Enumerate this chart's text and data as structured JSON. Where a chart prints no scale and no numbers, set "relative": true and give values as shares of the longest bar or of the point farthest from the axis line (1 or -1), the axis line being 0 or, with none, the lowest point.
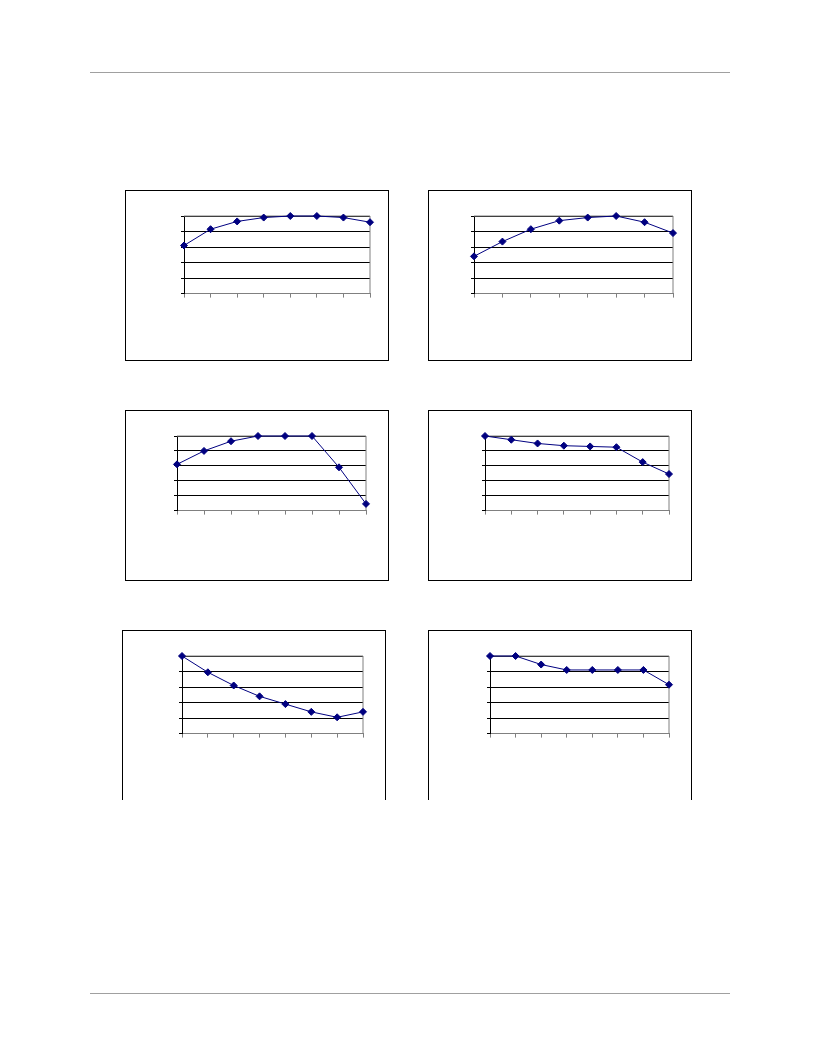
{
  "chart_data": [
    {
      "type": "line",
      "relative": true,
      "categories": [
        null,
        null,
        null,
        null,
        null,
        null,
        null,
        null
      ],
      "grid": "y",
      "marker": "diamond",
      "legend": false,
      "series": [
        {
          "color": "#000080",
          "values": [
            0.62,
            0.83,
            0.93,
            0.98,
            1,
            1,
            0.98,
            0.92
          ]
        }
      ]
    },
    {
      "type": "line",
      "relative": true,
      "categories": [
        null,
        null,
        null,
        null,
        null,
        null,
        null,
        null
      ],
      "grid": "y",
      "marker": "diamond",
      "legend": false,
      "series": [
        {
          "color": "#000080",
          "values": [
            0.48,
            0.67,
            0.83,
            0.94,
            0.98,
            1,
            0.92,
            0.78
          ]
        }
      ]
    },
    {
      "type": "line",
      "relative": true,
      "categories": [
        null,
        null,
        null,
        null,
        null,
        null,
        null,
        null
      ],
      "grid": "y",
      "marker": "diamond",
      "legend": false,
      "series": [
        {
          "color": "#000080",
          "values": [
            0.62,
            0.8,
            0.93,
            1,
            1,
            1,
            0.58,
            0.09
          ]
        }
      ]
    },
    {
      "type": "line",
      "relative": true,
      "categories": [
        null,
        null,
        null,
        null,
        null,
        null,
        null,
        null
      ],
      "grid": "y",
      "marker": "diamond",
      "legend": false,
      "series": [
        {
          "color": "#000080",
          "values": [
            1,
            0.95,
            0.9,
            0.87,
            0.86,
            0.85,
            0.65,
            0.49
          ]
        }
      ]
    },
    {
      "type": "line",
      "relative": true,
      "categories": [
        null,
        null,
        null,
        null,
        null,
        null,
        null,
        null
      ],
      "grid": "y",
      "marker": "diamond",
      "legend": false,
      "series": [
        {
          "color": "#000080",
          "values": [
            1,
            0.79,
            0.62,
            0.48,
            0.38,
            0.28,
            0.21,
            0.28
          ]
        }
      ]
    },
    {
      "type": "line",
      "relative": true,
      "categories": [
        null,
        null,
        null,
        null,
        null,
        null,
        null,
        null
      ],
      "grid": "y",
      "marker": "diamond",
      "legend": false,
      "series": [
        {
          "color": "#000080",
          "values": [
            1,
            1,
            0.89,
            0.82,
            0.82,
            0.82,
            0.82,
            0.63
          ]
        }
      ]
    }
  ]
}
